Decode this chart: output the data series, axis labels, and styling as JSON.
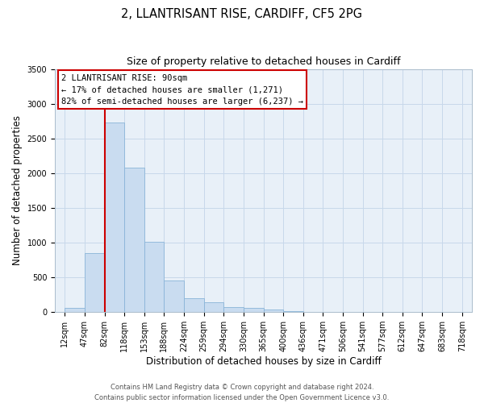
{
  "title": "2, LLANTRISANT RISE, CARDIFF, CF5 2PG",
  "subtitle": "Size of property relative to detached houses in Cardiff",
  "xlabel": "Distribution of detached houses by size in Cardiff",
  "ylabel": "Number of detached properties",
  "bar_values": [
    55,
    850,
    2730,
    2080,
    1010,
    450,
    205,
    145,
    75,
    65,
    35,
    15,
    0,
    0,
    0,
    0,
    0,
    0
  ],
  "bin_labels": [
    "12sqm",
    "47sqm",
    "82sqm",
    "118sqm",
    "153sqm",
    "188sqm",
    "224sqm",
    "259sqm",
    "294sqm",
    "330sqm",
    "365sqm",
    "400sqm",
    "436sqm",
    "471sqm",
    "506sqm",
    "541sqm",
    "577sqm",
    "612sqm",
    "647sqm",
    "683sqm",
    "718sqm"
  ],
  "bar_color": "#c9dcf0",
  "bar_edge_color": "#8ab4d8",
  "vline_x_index": 2,
  "vline_color": "#cc0000",
  "annotation_box_text": "2 LLANTRISANT RISE: 90sqm\n← 17% of detached houses are smaller (1,271)\n82% of semi-detached houses are larger (6,237) →",
  "annotation_box_edgecolor": "#cc0000",
  "ylim": [
    0,
    3500
  ],
  "yticks": [
    0,
    500,
    1000,
    1500,
    2000,
    2500,
    3000,
    3500
  ],
  "grid_color": "#c8d8ea",
  "footer_text": "Contains HM Land Registry data © Crown copyright and database right 2024.\nContains public sector information licensed under the Open Government Licence v3.0.",
  "plot_bg_color": "#e8f0f8",
  "fig_bg_color": "#ffffff",
  "title_fontsize": 10.5,
  "subtitle_fontsize": 9,
  "axis_label_fontsize": 8.5,
  "tick_fontsize": 7,
  "annotation_fontsize": 7.5,
  "footer_fontsize": 6
}
